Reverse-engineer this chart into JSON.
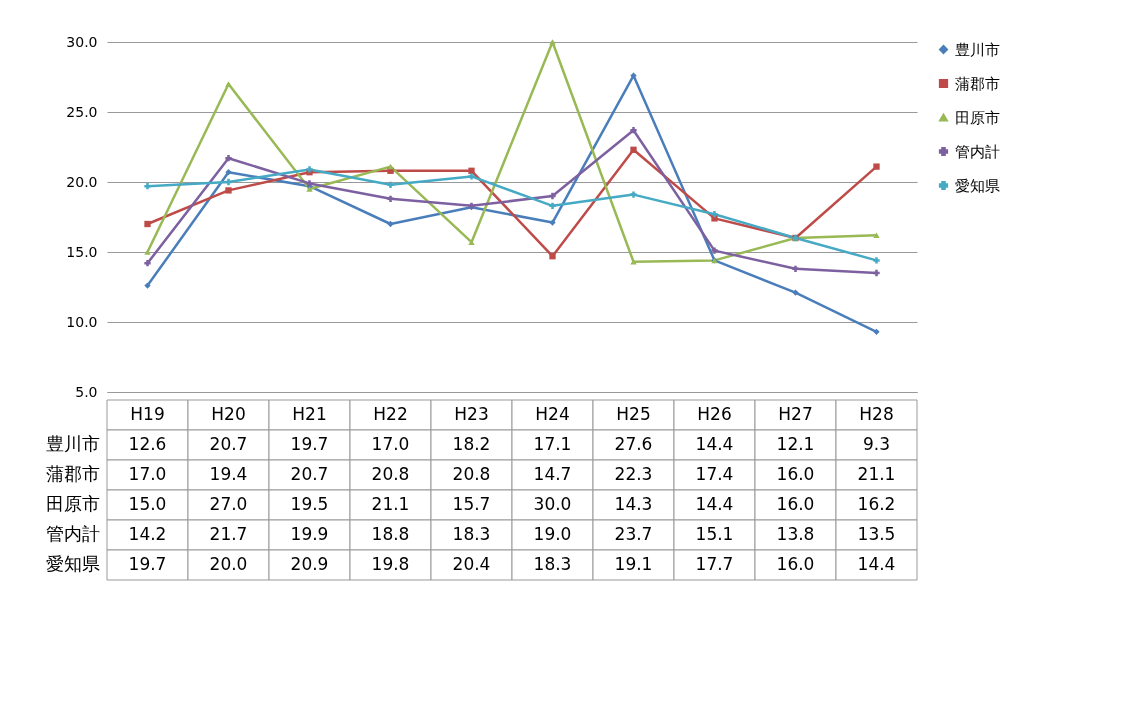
{
  "chart_data": {
    "type": "line",
    "categories": [
      "H19",
      "H20",
      "H21",
      "H22",
      "H23",
      "H24",
      "H25",
      "H26",
      "H27",
      "H28"
    ],
    "series": [
      {
        "name": "豊川市",
        "color": "#4a7ebb",
        "marker": "diamond",
        "values": [
          12.6,
          20.7,
          19.7,
          17.0,
          18.2,
          17.1,
          27.6,
          14.4,
          12.1,
          9.3
        ],
        "value_labels": [
          "12.6",
          "20.7",
          "19.7",
          "17.0",
          "18.2",
          "17.1",
          "27.6",
          "14.4",
          "12.1",
          "9.3"
        ]
      },
      {
        "name": "蒲郡市",
        "color": "#be4b48",
        "marker": "square",
        "values": [
          17.0,
          19.4,
          20.7,
          20.8,
          20.8,
          14.7,
          22.3,
          17.4,
          16.0,
          21.1
        ],
        "value_labels": [
          "17.0",
          "19.4",
          "20.7",
          "20.8",
          "20.8",
          "14.7",
          "22.3",
          "17.4",
          "16.0",
          "21.1"
        ]
      },
      {
        "name": "田原市",
        "color": "#98b954",
        "marker": "triangle",
        "values": [
          15.0,
          27.0,
          19.5,
          21.1,
          15.7,
          30.0,
          14.3,
          14.4,
          16.0,
          16.2
        ],
        "value_labels": [
          "15.0",
          "27.0",
          "19.5",
          "21.1",
          "15.7",
          "30.0",
          "14.3",
          "14.4",
          "16.0",
          "16.2"
        ]
      },
      {
        "name": "管内計",
        "color": "#7d60a0",
        "marker": "cross",
        "values": [
          14.2,
          21.7,
          19.9,
          18.8,
          18.3,
          19.0,
          23.7,
          15.1,
          13.8,
          13.5
        ],
        "value_labels": [
          "14.2",
          "21.7",
          "19.9",
          "18.8",
          "18.3",
          "19.0",
          "23.7",
          "15.1",
          "13.8",
          "13.5"
        ]
      },
      {
        "name": "愛知県",
        "color": "#46aac5",
        "marker": "cross",
        "values": [
          19.7,
          20.0,
          20.9,
          19.8,
          20.4,
          18.3,
          19.1,
          17.7,
          16.0,
          14.4
        ],
        "value_labels": [
          "19.7",
          "20.0",
          "20.9",
          "19.8",
          "20.4",
          "18.3",
          "19.1",
          "17.7",
          "16.0",
          "14.4"
        ]
      }
    ],
    "ylim": [
      5,
      30
    ],
    "yticks": [
      {
        "value": 5,
        "label": "5.0"
      },
      {
        "value": 10,
        "label": "10.0"
      },
      {
        "value": 15,
        "label": "15.0"
      },
      {
        "value": 20,
        "label": "20.0"
      },
      {
        "value": 25,
        "label": "25.0"
      },
      {
        "value": 30,
        "label": "30.0"
      }
    ],
    "grid": "y",
    "legend": "right",
    "tick_labels": "y",
    "line_style": "solid"
  }
}
